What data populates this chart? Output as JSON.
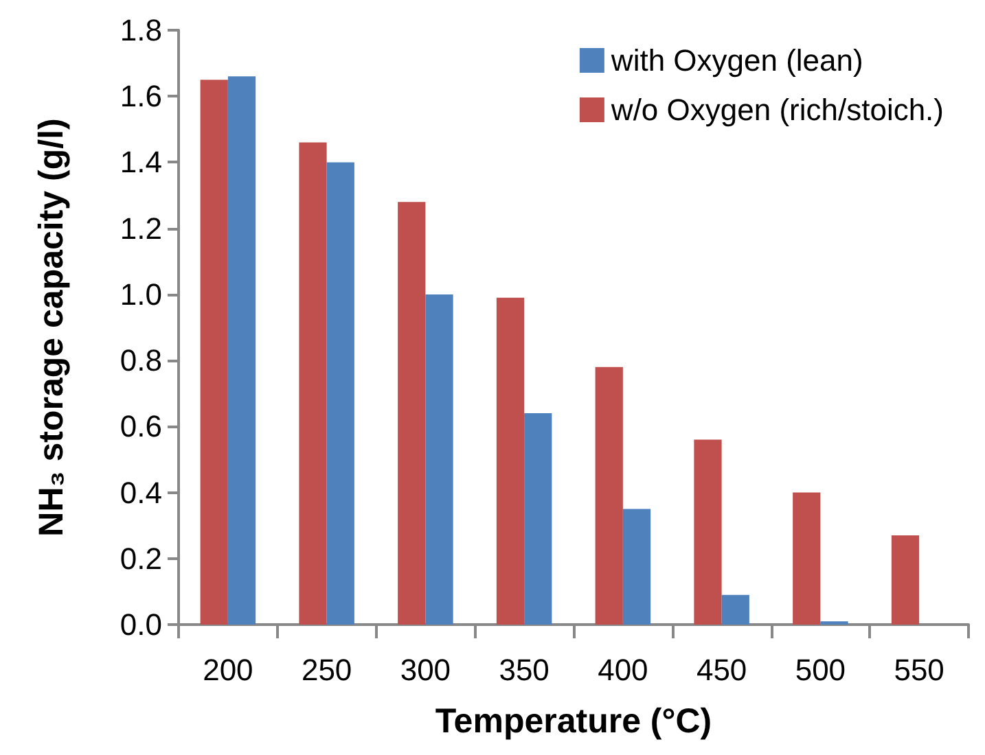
{
  "chart_data": {
    "type": "bar",
    "xlabel": "Temperature (°C)",
    "ylabel": "NH₃ storage capacity (g/l)",
    "categories": [
      "200",
      "250",
      "300",
      "350",
      "400",
      "450",
      "500",
      "550"
    ],
    "series": [
      {
        "name": "w/o Oxygen (rich/stoich.)",
        "color": "#c0504d",
        "values": [
          1.65,
          1.46,
          1.28,
          0.99,
          0.78,
          0.56,
          0.4,
          0.27
        ]
      },
      {
        "name": "with Oxygen (lean)",
        "color": "#4f81bd",
        "values": [
          1.66,
          1.4,
          1.0,
          0.64,
          0.35,
          0.09,
          0.01,
          0
        ]
      }
    ],
    "ylim": [
      0,
      1.8
    ],
    "yticks": [
      {
        "value": 0,
        "label": "0.0"
      },
      0.2,
      0.4,
      0.6,
      0.8,
      {
        "value": 1,
        "label": "1.0"
      },
      1.2,
      1.4,
      1.6,
      1.8
    ],
    "grid": false,
    "legend": "top right"
  }
}
